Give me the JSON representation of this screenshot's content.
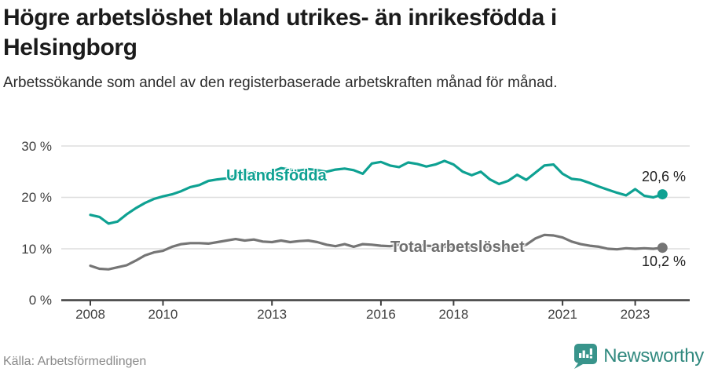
{
  "header": {
    "title_line1": "Högre arbetslöshet bland utrikes- än inrikesfödda i",
    "title_line2": "Helsingborg",
    "subtitle": "Arbetssökande som andel av den registerbaserade arbetskraften månad för månad."
  },
  "footer": {
    "source": "Källa: Arbetsförmedlingen",
    "brand": "Newsworthy"
  },
  "colors": {
    "series_teal": "#0ea192",
    "series_gray": "#757575",
    "brand_teal": "#38948b",
    "gridline": "#dedede",
    "axis": "#3f3f3f"
  },
  "chart_data": {
    "type": "line",
    "title": "Högre arbetslöshet bland utrikes- än inrikesfödda i Helsingborg",
    "subtitle": "Arbetssökande som andel av den registerbaserade arbetskraften månad för månad.",
    "x_start_year": 2008,
    "x_step_years": 0.25,
    "ylim": [
      0,
      30
    ],
    "grid": true,
    "legend_position": "inline-labels",
    "x_tick_years": [
      2008,
      2010,
      2013,
      2016,
      2018,
      2021,
      2023
    ],
    "x_tick_labels": [
      "2008",
      "2010",
      "2013",
      "2016",
      "2018",
      "2021",
      "2023"
    ],
    "y_tick_values": [
      0,
      10,
      20,
      30
    ],
    "y_tick_labels": [
      "0 %",
      "10 %",
      "20 %",
      "30 %"
    ],
    "series": [
      {
        "name": "Utlandsfödda",
        "color": "#0ea192",
        "end_label": "20,6 %",
        "end_value": 20.6,
        "values": [
          16.6,
          16.2,
          14.9,
          15.3,
          16.7,
          17.9,
          18.9,
          19.7,
          20.2,
          20.6,
          21.2,
          22.0,
          22.4,
          23.2,
          23.5,
          23.7,
          24.3,
          24.7,
          24.9,
          24.6,
          25.0,
          25.7,
          25.4,
          25.2,
          25.5,
          25.3,
          25.0,
          25.4,
          25.6,
          25.3,
          24.6,
          26.6,
          26.9,
          26.2,
          25.9,
          26.8,
          26.5,
          26.0,
          26.4,
          27.1,
          26.4,
          25.0,
          24.3,
          25.0,
          23.5,
          22.6,
          23.2,
          24.4,
          23.4,
          24.8,
          26.2,
          26.4,
          24.6,
          23.6,
          23.4,
          22.8,
          22.1,
          21.5,
          20.9,
          20.4,
          21.6,
          20.3,
          20.0,
          20.6
        ]
      },
      {
        "name": "Total arbetslöshet",
        "color": "#757575",
        "end_label": "10,2 %",
        "end_value": 10.2,
        "values": [
          6.7,
          6.1,
          6.0,
          6.4,
          6.8,
          7.7,
          8.7,
          9.3,
          9.6,
          10.4,
          10.9,
          11.1,
          11.1,
          11.0,
          11.3,
          11.6,
          11.9,
          11.6,
          11.8,
          11.4,
          11.3,
          11.6,
          11.3,
          11.5,
          11.6,
          11.3,
          10.8,
          10.5,
          10.9,
          10.4,
          10.9,
          10.8,
          10.6,
          10.5,
          10.8,
          10.8,
          10.8,
          10.6,
          10.5,
          10.4,
          10.4,
          10.3,
          10.2,
          10.3,
          10.4,
          10.2,
          10.3,
          10.4,
          10.8,
          12.0,
          12.7,
          12.6,
          12.2,
          11.4,
          10.9,
          10.6,
          10.4,
          10.0,
          9.9,
          10.1,
          10.0,
          10.1,
          10.0,
          10.2
        ]
      }
    ]
  }
}
